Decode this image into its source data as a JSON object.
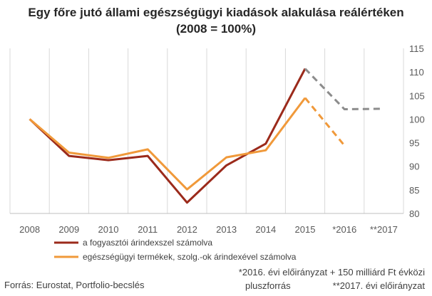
{
  "chart_data": {
    "type": "line",
    "title_line1": "Egy főre jutó állami egészségügyi kiadások alakulása reálértéken",
    "title_line2": "(2008 = 100%)",
    "categories": [
      "2008",
      "2009",
      "2010",
      "2011",
      "2012",
      "2013",
      "2014",
      "2015",
      "*2016",
      "**2017"
    ],
    "y_axis": {
      "min": 80,
      "max": 115,
      "step": 5,
      "position": "right",
      "ticks": [
        "80",
        "85",
        "90",
        "95",
        "100",
        "105",
        "110",
        "115"
      ]
    },
    "grid": {
      "vertical": true,
      "horizontal": false
    },
    "series": [
      {
        "name": "a fogyasztói árindexszel számolva",
        "color": "#9b2a1b",
        "values": [
          100,
          92.2,
          91.3,
          92.2,
          82.3,
          90.2,
          94.8,
          110.7,
          102.1,
          102.2
        ],
        "solid_until_index": 7,
        "dashed_color": "#8c8c8c"
      },
      {
        "name": "egészségügyi termékek, szolg.-ok árindexével számolva",
        "color": "#f0993a",
        "values": [
          100,
          92.9,
          91.8,
          93.6,
          85.1,
          91.9,
          93.4,
          104.5,
          94.4,
          null
        ],
        "solid_until_index": 7,
        "dashed_color": "#f0993a"
      }
    ]
  },
  "notes": {
    "source": "Forrás: Eurostat, Portfolio-becslés",
    "footnote1_line1": "*2016. évi előirányzat + 150 milliárd Ft évközi",
    "footnote1_line2": "pluszforrás",
    "footnote2": "**2017. évi előirányzat"
  }
}
